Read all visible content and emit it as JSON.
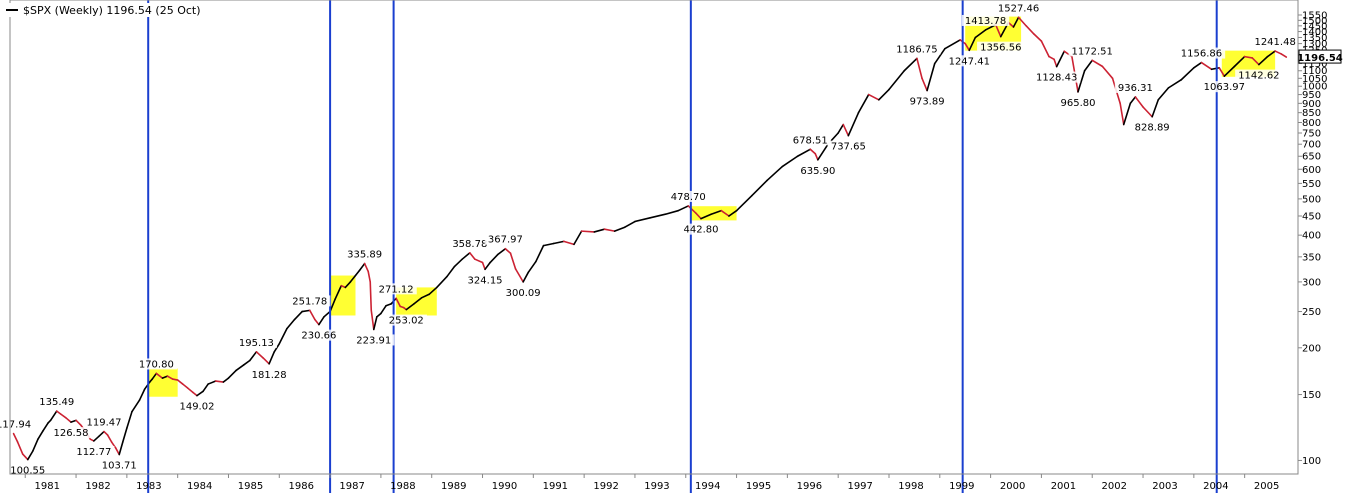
{
  "chart_data": {
    "type": "line",
    "title": "$SPX (Weekly) 1196.54 (25 Oct)",
    "series": [
      {
        "name": "$SPX",
        "color_up": "#000000",
        "color_down": "#cc2233",
        "points": [
          [
            1980.77,
            117.94
          ],
          [
            1980.85,
            112.0
          ],
          [
            1980.95,
            104.0
          ],
          [
            1981.05,
            100.55
          ],
          [
            1981.15,
            106.0
          ],
          [
            1981.25,
            114.0
          ],
          [
            1981.35,
            120.0
          ],
          [
            1981.45,
            126.0
          ],
          [
            1981.5,
            128.0
          ],
          [
            1981.62,
            135.49
          ],
          [
            1981.7,
            133.0
          ],
          [
            1981.8,
            130.0
          ],
          [
            1981.9,
            126.58
          ],
          [
            1982.0,
            128.0
          ],
          [
            1982.1,
            124.0
          ],
          [
            1982.2,
            119.0
          ],
          [
            1982.28,
            114.0
          ],
          [
            1982.35,
            112.77
          ],
          [
            1982.45,
            116.0
          ],
          [
            1982.55,
            119.47
          ],
          [
            1982.62,
            117.0
          ],
          [
            1982.7,
            112.0
          ],
          [
            1982.78,
            108.0
          ],
          [
            1982.85,
            103.71
          ],
          [
            1982.92,
            112.0
          ],
          [
            1983.0,
            122.0
          ],
          [
            1983.1,
            135.0
          ],
          [
            1983.25,
            145.0
          ],
          [
            1983.35,
            155.0
          ],
          [
            1983.45,
            162.0
          ],
          [
            1983.5,
            165.0
          ],
          [
            1983.58,
            170.8
          ],
          [
            1983.7,
            166.0
          ],
          [
            1983.8,
            168.0
          ],
          [
            1983.9,
            165.0
          ],
          [
            1984.0,
            164.0
          ],
          [
            1984.1,
            160.0
          ],
          [
            1984.2,
            156.0
          ],
          [
            1984.3,
            152.0
          ],
          [
            1984.38,
            149.02
          ],
          [
            1984.5,
            153.0
          ],
          [
            1984.6,
            160.0
          ],
          [
            1984.75,
            163.0
          ],
          [
            1984.9,
            162.0
          ],
          [
            1985.0,
            166.0
          ],
          [
            1985.15,
            174.0
          ],
          [
            1985.3,
            180.0
          ],
          [
            1985.42,
            185.0
          ],
          [
            1985.55,
            195.13
          ],
          [
            1985.68,
            188.0
          ],
          [
            1985.8,
            181.28
          ],
          [
            1985.9,
            195.0
          ],
          [
            1986.0,
            205.0
          ],
          [
            1986.15,
            225.0
          ],
          [
            1986.3,
            238.0
          ],
          [
            1986.45,
            250.0
          ],
          [
            1986.6,
            251.78
          ],
          [
            1986.7,
            238.0
          ],
          [
            1986.78,
            230.66
          ],
          [
            1986.88,
            242.0
          ],
          [
            1987.0,
            250.0
          ],
          [
            1987.1,
            270.0
          ],
          [
            1987.22,
            293.0
          ],
          [
            1987.3,
            290.0
          ],
          [
            1987.4,
            300.0
          ],
          [
            1987.5,
            312.0
          ],
          [
            1987.58,
            322.0
          ],
          [
            1987.68,
            335.89
          ],
          [
            1987.75,
            320.0
          ],
          [
            1987.79,
            300.0
          ],
          [
            1987.81,
            252.0
          ],
          [
            1987.86,
            223.91
          ],
          [
            1987.92,
            242.0
          ],
          [
            1988.0,
            247.0
          ],
          [
            1988.1,
            259.0
          ],
          [
            1988.2,
            262.0
          ],
          [
            1988.3,
            271.12
          ],
          [
            1988.38,
            258.0
          ],
          [
            1988.45,
            256.0
          ],
          [
            1988.5,
            253.02
          ],
          [
            1988.65,
            262.0
          ],
          [
            1988.8,
            272.0
          ],
          [
            1988.95,
            278.0
          ],
          [
            1989.1,
            290.0
          ],
          [
            1989.3,
            310.0
          ],
          [
            1989.45,
            330.0
          ],
          [
            1989.6,
            345.0
          ],
          [
            1989.75,
            358.78
          ],
          [
            1989.85,
            345.0
          ],
          [
            1990.0,
            338.0
          ],
          [
            1990.05,
            324.15
          ],
          [
            1990.15,
            338.0
          ],
          [
            1990.3,
            355.0
          ],
          [
            1990.45,
            367.97
          ],
          [
            1990.55,
            358.0
          ],
          [
            1990.65,
            325.0
          ],
          [
            1990.8,
            300.09
          ],
          [
            1990.9,
            318.0
          ],
          [
            1991.05,
            340.0
          ],
          [
            1991.2,
            375.0
          ],
          [
            1991.4,
            380.0
          ],
          [
            1991.6,
            385.0
          ],
          [
            1991.8,
            378.0
          ],
          [
            1991.95,
            410.0
          ],
          [
            1992.2,
            408.0
          ],
          [
            1992.4,
            415.0
          ],
          [
            1992.6,
            410.0
          ],
          [
            1992.8,
            420.0
          ],
          [
            1993.0,
            435.0
          ],
          [
            1993.3,
            445.0
          ],
          [
            1993.6,
            455.0
          ],
          [
            1993.85,
            465.0
          ],
          [
            1994.05,
            478.7
          ],
          [
            1994.2,
            458.0
          ],
          [
            1994.3,
            442.8
          ],
          [
            1994.5,
            455.0
          ],
          [
            1994.7,
            465.0
          ],
          [
            1994.85,
            450.0
          ],
          [
            1995.0,
            465.0
          ],
          [
            1995.3,
            510.0
          ],
          [
            1995.6,
            560.0
          ],
          [
            1995.9,
            610.0
          ],
          [
            1996.2,
            650.0
          ],
          [
            1996.45,
            678.51
          ],
          [
            1996.55,
            660.0
          ],
          [
            1996.6,
            635.9
          ],
          [
            1996.8,
            700.0
          ],
          [
            1997.0,
            750.0
          ],
          [
            1997.1,
            790.0
          ],
          [
            1997.2,
            737.65
          ],
          [
            1997.4,
            850.0
          ],
          [
            1997.6,
            950.0
          ],
          [
            1997.8,
            920.0
          ],
          [
            1998.0,
            980.0
          ],
          [
            1998.3,
            1100.0
          ],
          [
            1998.55,
            1186.75
          ],
          [
            1998.65,
            1050.0
          ],
          [
            1998.75,
            973.89
          ],
          [
            1998.9,
            1150.0
          ],
          [
            1999.1,
            1260.0
          ],
          [
            1999.4,
            1330.0
          ],
          [
            1999.5,
            1300.0
          ],
          [
            1999.58,
            1247.41
          ],
          [
            1999.7,
            1350.0
          ],
          [
            1999.9,
            1413.78
          ],
          [
            2000.1,
            1460.0
          ],
          [
            2000.2,
            1356.56
          ],
          [
            2000.35,
            1480.0
          ],
          [
            2000.45,
            1440.0
          ],
          [
            2000.55,
            1527.46
          ],
          [
            2000.7,
            1450.0
          ],
          [
            2000.85,
            1380.0
          ],
          [
            2001.0,
            1320.0
          ],
          [
            2001.15,
            1200.0
          ],
          [
            2001.25,
            1180.0
          ],
          [
            2001.3,
            1128.43
          ],
          [
            2001.45,
            1240.0
          ],
          [
            2001.6,
            1200.0
          ],
          [
            2001.72,
            965.8
          ],
          [
            2001.85,
            1100.0
          ],
          [
            2002.0,
            1172.51
          ],
          [
            2002.2,
            1130.0
          ],
          [
            2002.4,
            1050.0
          ],
          [
            2002.55,
            900.0
          ],
          [
            2002.62,
            790.0
          ],
          [
            2002.75,
            900.0
          ],
          [
            2002.85,
            936.31
          ],
          [
            2003.0,
            880.0
          ],
          [
            2003.18,
            828.89
          ],
          [
            2003.3,
            920.0
          ],
          [
            2003.5,
            990.0
          ],
          [
            2003.75,
            1040.0
          ],
          [
            2004.0,
            1120.0
          ],
          [
            2004.15,
            1156.86
          ],
          [
            2004.35,
            1110.0
          ],
          [
            2004.5,
            1120.0
          ],
          [
            2004.6,
            1063.97
          ],
          [
            2004.8,
            1130.0
          ],
          [
            2005.0,
            1200.0
          ],
          [
            2005.15,
            1190.0
          ],
          [
            2005.28,
            1142.62
          ],
          [
            2005.45,
            1200.0
          ],
          [
            2005.6,
            1241.48
          ],
          [
            2005.72,
            1220.0
          ],
          [
            2005.82,
            1196.54
          ]
        ]
      }
    ],
    "y_scale": "log",
    "ylim": [
      92,
      1700
    ],
    "xlim": [
      1980.7,
      2006.05
    ],
    "y_ticks": [
      100,
      150,
      200,
      250,
      300,
      350,
      400,
      450,
      500,
      550,
      600,
      650,
      700,
      750,
      800,
      850,
      900,
      950,
      1000,
      1050,
      1100,
      1150,
      1200,
      1250,
      1300,
      1350,
      1400,
      1450,
      1500,
      1550
    ],
    "x_ticks": [
      "1981",
      "1982",
      "1983",
      "1984",
      "1985",
      "1986",
      "1987",
      "1988",
      "1989",
      "1990",
      "1991",
      "1992",
      "1993",
      "1994",
      "1995",
      "1996",
      "1997",
      "1998",
      "1999",
      "2000",
      "2001",
      "2002",
      "2003",
      "2004",
      "2005"
    ],
    "current_value": "1196.54",
    "annotations": [
      {
        "x": 1980.77,
        "y": 117.94,
        "text": "117.94",
        "pos": "above"
      },
      {
        "x": 1981.05,
        "y": 100.55,
        "text": "100.55",
        "pos": "below"
      },
      {
        "x": 1981.62,
        "y": 135.49,
        "text": "135.49",
        "pos": "above"
      },
      {
        "x": 1981.9,
        "y": 126.58,
        "text": "126.58",
        "pos": "below"
      },
      {
        "x": 1982.35,
        "y": 112.77,
        "text": "112.77",
        "pos": "below"
      },
      {
        "x": 1982.55,
        "y": 119.47,
        "text": "119.47",
        "pos": "above"
      },
      {
        "x": 1982.85,
        "y": 103.71,
        "text": "103.71",
        "pos": "below"
      },
      {
        "x": 1983.58,
        "y": 170.8,
        "text": "170.80",
        "pos": "above"
      },
      {
        "x": 1984.38,
        "y": 149.02,
        "text": "149.02",
        "pos": "below"
      },
      {
        "x": 1985.55,
        "y": 195.13,
        "text": "195.13",
        "pos": "above"
      },
      {
        "x": 1985.8,
        "y": 181.28,
        "text": "181.28",
        "pos": "below"
      },
      {
        "x": 1986.6,
        "y": 251.78,
        "text": "251.78",
        "pos": "above"
      },
      {
        "x": 1986.78,
        "y": 230.66,
        "text": "230.66",
        "pos": "below"
      },
      {
        "x": 1987.68,
        "y": 335.89,
        "text": "335.89",
        "pos": "above"
      },
      {
        "x": 1987.86,
        "y": 223.91,
        "text": "223.91",
        "pos": "below"
      },
      {
        "x": 1988.3,
        "y": 271.12,
        "text": "271.12",
        "pos": "above"
      },
      {
        "x": 1988.5,
        "y": 253.02,
        "text": "253.02",
        "pos": "below"
      },
      {
        "x": 1989.75,
        "y": 358.78,
        "text": "358.78",
        "pos": "above"
      },
      {
        "x": 1990.05,
        "y": 324.15,
        "text": "324.15",
        "pos": "below"
      },
      {
        "x": 1990.45,
        "y": 367.97,
        "text": "367.97",
        "pos": "above"
      },
      {
        "x": 1990.8,
        "y": 300.09,
        "text": "300.09",
        "pos": "below"
      },
      {
        "x": 1994.05,
        "y": 478.7,
        "text": "478.70",
        "pos": "above"
      },
      {
        "x": 1994.3,
        "y": 442.8,
        "text": "442.80",
        "pos": "below"
      },
      {
        "x": 1996.45,
        "y": 678.51,
        "text": "678.51",
        "pos": "above"
      },
      {
        "x": 1996.6,
        "y": 635.9,
        "text": "635.90",
        "pos": "below"
      },
      {
        "x": 1997.2,
        "y": 737.65,
        "text": "737.65",
        "pos": "below"
      },
      {
        "x": 1998.55,
        "y": 1186.75,
        "text": "1186.75",
        "pos": "above"
      },
      {
        "x": 1998.75,
        "y": 973.89,
        "text": "973.89",
        "pos": "below"
      },
      {
        "x": 1999.58,
        "y": 1247.41,
        "text": "1247.41",
        "pos": "below"
      },
      {
        "x": 1999.9,
        "y": 1413.78,
        "text": "1413.78",
        "pos": "above"
      },
      {
        "x": 2000.2,
        "y": 1356.56,
        "text": "1356.56",
        "pos": "below"
      },
      {
        "x": 2000.55,
        "y": 1527.46,
        "text": "1527.46",
        "pos": "above"
      },
      {
        "x": 2001.3,
        "y": 1128.43,
        "text": "1128.43",
        "pos": "below"
      },
      {
        "x": 2001.72,
        "y": 965.8,
        "text": "965.80",
        "pos": "below"
      },
      {
        "x": 2002.0,
        "y": 1172.51,
        "text": "1172.51",
        "pos": "above"
      },
      {
        "x": 2002.85,
        "y": 936.31,
        "text": "936.31",
        "pos": "above"
      },
      {
        "x": 2003.18,
        "y": 828.89,
        "text": "828.89",
        "pos": "below"
      },
      {
        "x": 2004.15,
        "y": 1156.86,
        "text": "1156.86",
        "pos": "above"
      },
      {
        "x": 2004.6,
        "y": 1063.97,
        "text": "1063.97",
        "pos": "below"
      },
      {
        "x": 2005.28,
        "y": 1142.62,
        "text": "1142.62",
        "pos": "below"
      },
      {
        "x": 2005.6,
        "y": 1241.48,
        "text": "1241.48",
        "pos": "above"
      }
    ],
    "vertical_lines": [
      1983.42,
      1987.0,
      1988.25,
      1994.1,
      1999.45,
      2004.45
    ],
    "highlight_boxes": [
      {
        "x0": 1983.42,
        "x1": 1984.0,
        "y0": 148,
        "y1": 176
      },
      {
        "x0": 1987.0,
        "x1": 1987.5,
        "y0": 244,
        "y1": 312
      },
      {
        "x0": 1988.3,
        "x1": 1989.1,
        "y0": 244,
        "y1": 290
      },
      {
        "x0": 1994.1,
        "x1": 1995.0,
        "y0": 438,
        "y1": 478
      },
      {
        "x0": 1999.5,
        "x1": 2000.6,
        "y0": 1245,
        "y1": 1535
      },
      {
        "x0": 2004.55,
        "x1": 2005.6,
        "y0": 1060,
        "y1": 1245
      }
    ],
    "colors": {
      "vertical_line": "#1a3fcf",
      "highlight": "#ffff33",
      "grid": "#d8d8d8",
      "axis": "#888888"
    }
  }
}
